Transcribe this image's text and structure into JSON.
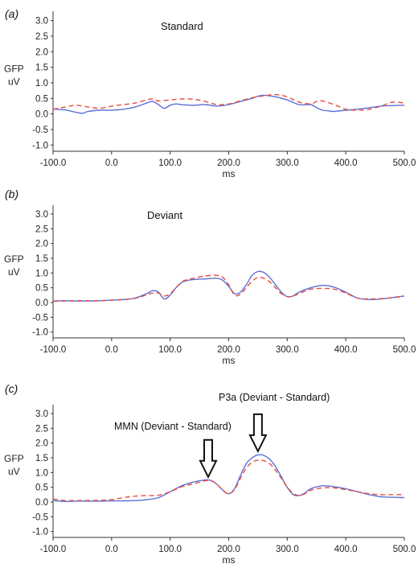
{
  "chart_data": [
    {
      "type": "line",
      "panel_label": "(a)",
      "title": "Standard",
      "ylabel_1": "GFP",
      "ylabel_2": "uV",
      "xlabel": "ms",
      "xlim": [
        -100,
        500
      ],
      "ylim": [
        -1.2,
        3.3
      ],
      "x_ticks": [
        "-100.0",
        "0.0",
        "100.0",
        "200.0",
        "300.0",
        "400.0",
        "500.0"
      ],
      "y_ticks": [
        "3.0",
        "2.5",
        "2.0",
        "1.5",
        "1.0",
        "0.5",
        "0.0",
        "-0.5",
        "-1.0"
      ],
      "annotations": [],
      "series": [
        {
          "color": "#5b6fd6",
          "dash": "solid",
          "x": [
            -100,
            -80,
            -60,
            -50,
            -40,
            -20,
            0,
            20,
            40,
            60,
            70,
            80,
            90,
            100,
            110,
            120,
            140,
            160,
            180,
            200,
            220,
            240,
            250,
            260,
            280,
            300,
            320,
            340,
            350,
            360,
            370,
            380,
            400,
            420,
            440,
            460,
            480,
            500
          ],
          "y": [
            0.15,
            0.13,
            0.05,
            0.02,
            0.08,
            0.12,
            0.12,
            0.15,
            0.22,
            0.35,
            0.4,
            0.3,
            0.18,
            0.28,
            0.32,
            0.3,
            0.28,
            0.3,
            0.25,
            0.3,
            0.4,
            0.5,
            0.57,
            0.6,
            0.55,
            0.45,
            0.3,
            0.3,
            0.2,
            0.12,
            0.1,
            0.08,
            0.12,
            0.15,
            0.2,
            0.25,
            0.27,
            0.28
          ]
        },
        {
          "color": "#e84a3a",
          "dash": "dashed",
          "x": [
            -100,
            -80,
            -60,
            -40,
            -20,
            0,
            20,
            40,
            60,
            70,
            80,
            100,
            120,
            140,
            160,
            180,
            200,
            220,
            240,
            260,
            280,
            300,
            320,
            340,
            350,
            360,
            380,
            400,
            420,
            440,
            460,
            480,
            500
          ],
          "y": [
            0.15,
            0.22,
            0.28,
            0.22,
            0.18,
            0.25,
            0.3,
            0.35,
            0.45,
            0.48,
            0.42,
            0.45,
            0.48,
            0.47,
            0.4,
            0.3,
            0.32,
            0.42,
            0.52,
            0.58,
            0.62,
            0.55,
            0.38,
            0.32,
            0.4,
            0.42,
            0.3,
            0.15,
            0.12,
            0.15,
            0.25,
            0.38,
            0.35
          ]
        }
      ]
    },
    {
      "type": "line",
      "panel_label": "(b)",
      "title": "Deviant",
      "ylabel_1": "GFP",
      "ylabel_2": "uV",
      "xlabel": "ms",
      "xlim": [
        -100,
        500
      ],
      "ylim": [
        -1.2,
        3.3
      ],
      "x_ticks": [
        "-100.0",
        "0.0",
        "100.0",
        "200.0",
        "300.0",
        "400.0",
        "500.0"
      ],
      "y_ticks": [
        "3.0",
        "2.5",
        "2.0",
        "1.5",
        "1.0",
        "0.5",
        "0.0",
        "-0.5",
        "-1.0"
      ],
      "annotations": [],
      "series": [
        {
          "color": "#5b6fd6",
          "dash": "solid",
          "x": [
            -100,
            -80,
            -60,
            -40,
            -20,
            0,
            20,
            40,
            60,
            70,
            80,
            90,
            100,
            110,
            120,
            130,
            140,
            160,
            180,
            190,
            200,
            210,
            220,
            230,
            240,
            250,
            260,
            270,
            280,
            290,
            300,
            310,
            320,
            340,
            360,
            380,
            400,
            420,
            440,
            460,
            480,
            500
          ],
          "y": [
            0.05,
            0.06,
            0.05,
            0.05,
            0.06,
            0.08,
            0.1,
            0.15,
            0.3,
            0.4,
            0.35,
            0.12,
            0.25,
            0.5,
            0.68,
            0.75,
            0.78,
            0.8,
            0.82,
            0.75,
            0.55,
            0.3,
            0.35,
            0.6,
            0.92,
            1.05,
            1.02,
            0.85,
            0.6,
            0.35,
            0.2,
            0.22,
            0.35,
            0.5,
            0.58,
            0.52,
            0.35,
            0.15,
            0.1,
            0.12,
            0.17,
            0.22
          ]
        },
        {
          "color": "#e84a3a",
          "dash": "dashed",
          "x": [
            -100,
            -80,
            -60,
            -40,
            -20,
            0,
            20,
            40,
            60,
            70,
            80,
            90,
            100,
            110,
            120,
            130,
            140,
            160,
            180,
            190,
            200,
            210,
            220,
            230,
            240,
            250,
            260,
            270,
            280,
            290,
            300,
            310,
            320,
            340,
            360,
            380,
            400,
            420,
            440,
            460,
            480,
            500
          ],
          "y": [
            0.04,
            0.05,
            0.06,
            0.06,
            0.06,
            0.08,
            0.1,
            0.14,
            0.26,
            0.32,
            0.32,
            0.22,
            0.3,
            0.5,
            0.7,
            0.78,
            0.82,
            0.9,
            0.92,
            0.85,
            0.6,
            0.25,
            0.28,
            0.5,
            0.72,
            0.85,
            0.82,
            0.7,
            0.5,
            0.3,
            0.2,
            0.22,
            0.3,
            0.45,
            0.48,
            0.45,
            0.32,
            0.15,
            0.12,
            0.13,
            0.16,
            0.22
          ]
        }
      ]
    },
    {
      "type": "line",
      "panel_label": "(c)",
      "title": "",
      "ylabel_1": "GFP",
      "ylabel_2": "uV",
      "xlabel": "ms",
      "xlim": [
        -100,
        500
      ],
      "ylim": [
        -1.2,
        3.3
      ],
      "x_ticks": [
        "-100.0",
        "0.0",
        "100.0",
        "200.0",
        "300.0",
        "400.0",
        "500.0"
      ],
      "y_ticks": [
        "3.0",
        "2.5",
        "2.0",
        "1.5",
        "1.0",
        "0.5",
        "0.0",
        "-0.5",
        "-1.0"
      ],
      "annotations": [
        {
          "text": "MMN (Deviant - Standard)",
          "arrow_x": 165,
          "arrow_y": 0.85
        },
        {
          "text": "P3a (Deviant - Standard)",
          "arrow_x": 250,
          "arrow_y": 1.72
        }
      ],
      "series": [
        {
          "color": "#5b6fd6",
          "dash": "solid",
          "x": [
            -100,
            -80,
            -60,
            -40,
            -20,
            0,
            20,
            40,
            60,
            80,
            100,
            120,
            140,
            160,
            170,
            180,
            190,
            200,
            210,
            220,
            230,
            240,
            250,
            260,
            270,
            280,
            290,
            300,
            310,
            320,
            330,
            340,
            360,
            380,
            400,
            420,
            440,
            460,
            480,
            500
          ],
          "y": [
            0.05,
            0.02,
            0.03,
            0.03,
            0.03,
            0.04,
            0.04,
            0.05,
            0.08,
            0.15,
            0.35,
            0.55,
            0.68,
            0.75,
            0.73,
            0.6,
            0.4,
            0.28,
            0.45,
            0.9,
            1.3,
            1.5,
            1.6,
            1.58,
            1.45,
            1.2,
            0.85,
            0.5,
            0.25,
            0.22,
            0.3,
            0.45,
            0.55,
            0.52,
            0.45,
            0.35,
            0.25,
            0.18,
            0.16,
            0.15
          ]
        },
        {
          "color": "#e84a3a",
          "dash": "dashed",
          "x": [
            -100,
            -80,
            -60,
            -40,
            -20,
            0,
            20,
            40,
            60,
            80,
            100,
            120,
            140,
            160,
            170,
            180,
            190,
            200,
            210,
            220,
            230,
            240,
            250,
            260,
            270,
            280,
            290,
            300,
            310,
            320,
            330,
            340,
            360,
            380,
            400,
            420,
            440,
            460,
            480,
            500
          ],
          "y": [
            0.1,
            0.05,
            0.05,
            0.05,
            0.06,
            0.08,
            0.15,
            0.2,
            0.22,
            0.23,
            0.35,
            0.52,
            0.62,
            0.72,
            0.72,
            0.6,
            0.4,
            0.28,
            0.42,
            0.8,
            1.15,
            1.35,
            1.42,
            1.4,
            1.3,
            1.08,
            0.8,
            0.5,
            0.3,
            0.22,
            0.28,
            0.4,
            0.48,
            0.48,
            0.42,
            0.35,
            0.28,
            0.25,
            0.25,
            0.25
          ]
        }
      ]
    }
  ]
}
